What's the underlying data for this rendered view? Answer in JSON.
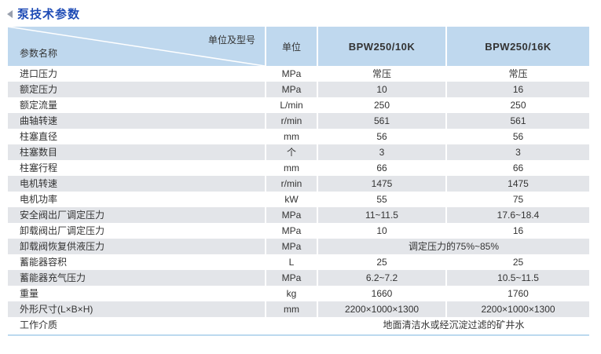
{
  "title": {
    "arrow_icon": "left-triangle",
    "text": "泵技术参数",
    "color": "#1E4BB5"
  },
  "table": {
    "corner_top_right": "单位及型号",
    "corner_bottom_left": "参数名称",
    "columns": [
      "单位",
      "BPW250/10K",
      "BPW250/16K"
    ],
    "rows": [
      {
        "name": "进口压力",
        "unit": "MPa",
        "v1": "常压",
        "v2": "常压"
      },
      {
        "name": "额定压力",
        "unit": "MPa",
        "v1": "10",
        "v2": "16"
      },
      {
        "name": "额定流量",
        "unit": "L/min",
        "v1": "250",
        "v2": "250"
      },
      {
        "name": "曲轴转速",
        "unit": "r/min",
        "v1": "561",
        "v2": "561"
      },
      {
        "name": "柱塞直径",
        "unit": "mm",
        "v1": "56",
        "v2": "56"
      },
      {
        "name": "柱塞数目",
        "unit": "个",
        "v1": "3",
        "v2": "3"
      },
      {
        "name": "柱塞行程",
        "unit": "mm",
        "v1": "66",
        "v2": "66"
      },
      {
        "name": "电机转速",
        "unit": "r/min",
        "v1": "1475",
        "v2": "1475"
      },
      {
        "name": "电机功率",
        "unit": "kW",
        "v1": "55",
        "v2": "75"
      },
      {
        "name": "安全阀出厂调定压力",
        "unit": "MPa",
        "v1": "11~11.5",
        "v2": "17.6~18.4"
      },
      {
        "name": "卸载阀出厂调定压力",
        "unit": "MPa",
        "v1": "10",
        "v2": "16"
      },
      {
        "name": "卸载阀恢复供液压力",
        "unit": "MPa",
        "span": "调定压力的75%~85%"
      },
      {
        "name": "蓄能器容积",
        "unit": "L",
        "v1": "25",
        "v2": "25"
      },
      {
        "name": "蓄能器充气压力",
        "unit": "MPa",
        "v1": "6.2~7.2",
        "v2": "10.5~11.5"
      },
      {
        "name": "重量",
        "unit": "kg",
        "v1": "1660",
        "v2": "1760"
      },
      {
        "name": "外形尺寸(L×B×H)",
        "unit": "mm",
        "v1": "2200×1000×1300",
        "v2": "2200×1000×1300"
      },
      {
        "name": "工作介质",
        "unit": "",
        "span": "地面清洁水或经沉淀过滤的矿井水"
      }
    ],
    "colors": {
      "header_bg": "#BFD8EE",
      "row_alt_bg": "#E3E5E9",
      "bottom_border": "#BCD9EF"
    }
  }
}
